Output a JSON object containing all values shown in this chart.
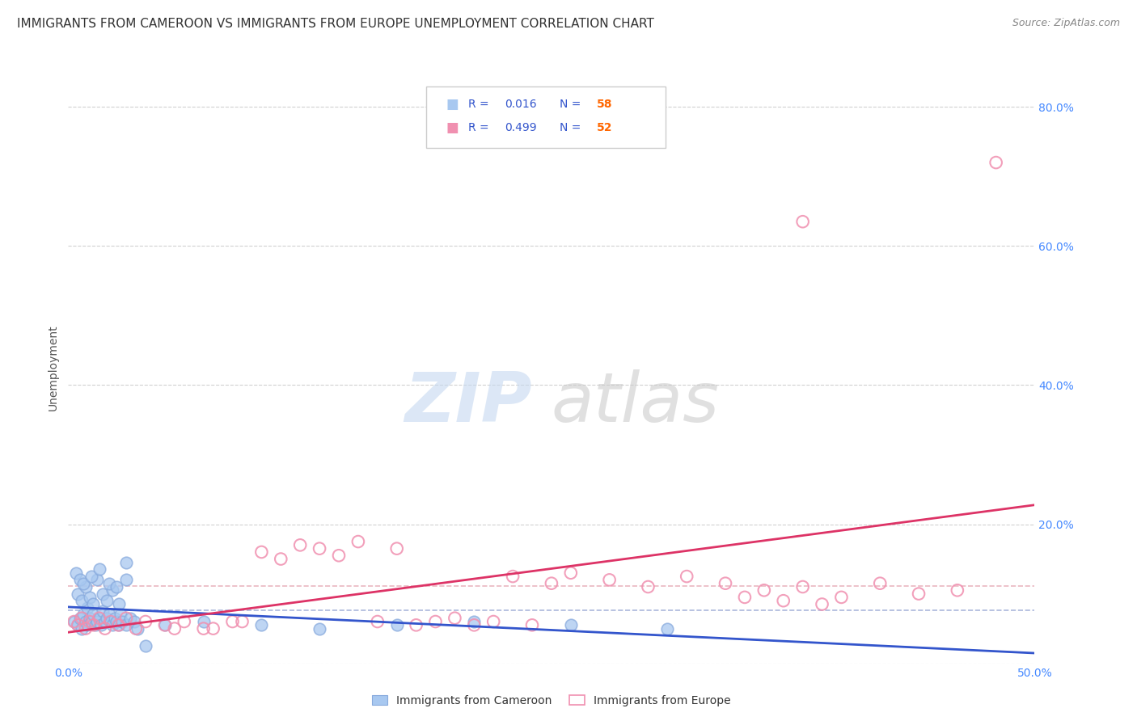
{
  "title": "IMMIGRANTS FROM CAMEROON VS IMMIGRANTS FROM EUROPE UNEMPLOYMENT CORRELATION CHART",
  "source": "Source: ZipAtlas.com",
  "ylabel": "Unemployment",
  "xlim": [
    0.0,
    0.5
  ],
  "ylim": [
    0.0,
    0.85
  ],
  "xtick_positions": [
    0.0,
    0.1,
    0.2,
    0.3,
    0.4,
    0.5
  ],
  "xticklabels": [
    "0.0%",
    "",
    "",
    "",
    "",
    "50.0%"
  ],
  "ytick_positions": [
    0.0,
    0.2,
    0.4,
    0.6,
    0.8
  ],
  "yticklabels_right": [
    "",
    "20.0%",
    "40.0%",
    "60.0%",
    "80.0%"
  ],
  "series1_label": "Immigrants from Cameroon",
  "series2_label": "Immigrants from Europe",
  "R1": "0.016",
  "N1": "58",
  "R2": "0.499",
  "N2": "52",
  "color1_fill": "#a8c8f0",
  "color1_edge": "#88aadd",
  "color2_fill": "none",
  "color2_edge": "#f090b0",
  "line1_color": "#3355cc",
  "line2_color": "#dd3366",
  "dash1_color": "#8899cc",
  "dash2_color": "#dd8899",
  "background_color": "#ffffff",
  "grid_color": "#cccccc",
  "tick_label_color": "#4488ff",
  "axis_tick_color": "#4488ff",
  "legend_R_color": "#3355cc",
  "legend_N_color": "#ff6600",
  "watermark_zip_color": "#c5d8f0",
  "watermark_atlas_color": "#c8c8c8",
  "title_color": "#333333",
  "source_color": "#888888",
  "ylabel_color": "#555555",
  "legend_border_color": "#cccccc",
  "cam_x": [
    0.003,
    0.005,
    0.006,
    0.007,
    0.008,
    0.009,
    0.01,
    0.01,
    0.011,
    0.012,
    0.013,
    0.014,
    0.015,
    0.016,
    0.017,
    0.018,
    0.019,
    0.02,
    0.021,
    0.022,
    0.023,
    0.024,
    0.025,
    0.026,
    0.027,
    0.028,
    0.03,
    0.032,
    0.034,
    0.036,
    0.005,
    0.007,
    0.009,
    0.011,
    0.013,
    0.015,
    0.018,
    0.02,
    0.023,
    0.026,
    0.004,
    0.006,
    0.008,
    0.012,
    0.016,
    0.021,
    0.025,
    0.03,
    0.05,
    0.07,
    0.1,
    0.13,
    0.17,
    0.21,
    0.26,
    0.31,
    0.03,
    0.04
  ],
  "cam_y": [
    0.06,
    0.055,
    0.065,
    0.05,
    0.07,
    0.06,
    0.055,
    0.08,
    0.065,
    0.06,
    0.07,
    0.055,
    0.06,
    0.065,
    0.055,
    0.075,
    0.06,
    0.065,
    0.07,
    0.06,
    0.055,
    0.065,
    0.06,
    0.055,
    0.07,
    0.06,
    0.055,
    0.065,
    0.06,
    0.05,
    0.1,
    0.09,
    0.11,
    0.095,
    0.085,
    0.12,
    0.1,
    0.09,
    0.105,
    0.085,
    0.13,
    0.12,
    0.115,
    0.125,
    0.135,
    0.115,
    0.11,
    0.12,
    0.055,
    0.06,
    0.055,
    0.05,
    0.055,
    0.06,
    0.055,
    0.05,
    0.145,
    0.025
  ],
  "eur_x": [
    0.003,
    0.005,
    0.007,
    0.009,
    0.011,
    0.013,
    0.016,
    0.019,
    0.022,
    0.026,
    0.03,
    0.035,
    0.04,
    0.05,
    0.06,
    0.07,
    0.085,
    0.1,
    0.12,
    0.14,
    0.16,
    0.18,
    0.2,
    0.22,
    0.24,
    0.26,
    0.28,
    0.3,
    0.32,
    0.34,
    0.36,
    0.38,
    0.4,
    0.42,
    0.44,
    0.46,
    0.15,
    0.17,
    0.19,
    0.21,
    0.23,
    0.25,
    0.09,
    0.11,
    0.13,
    0.35,
    0.37,
    0.39,
    0.055,
    0.075,
    0.38,
    0.48
  ],
  "eur_y": [
    0.06,
    0.055,
    0.065,
    0.05,
    0.06,
    0.055,
    0.065,
    0.05,
    0.06,
    0.055,
    0.065,
    0.05,
    0.06,
    0.055,
    0.06,
    0.05,
    0.06,
    0.16,
    0.17,
    0.155,
    0.06,
    0.055,
    0.065,
    0.06,
    0.055,
    0.13,
    0.12,
    0.11,
    0.125,
    0.115,
    0.105,
    0.11,
    0.095,
    0.115,
    0.1,
    0.105,
    0.175,
    0.165,
    0.06,
    0.055,
    0.125,
    0.115,
    0.06,
    0.15,
    0.165,
    0.095,
    0.09,
    0.085,
    0.05,
    0.05,
    0.635,
    0.72
  ]
}
